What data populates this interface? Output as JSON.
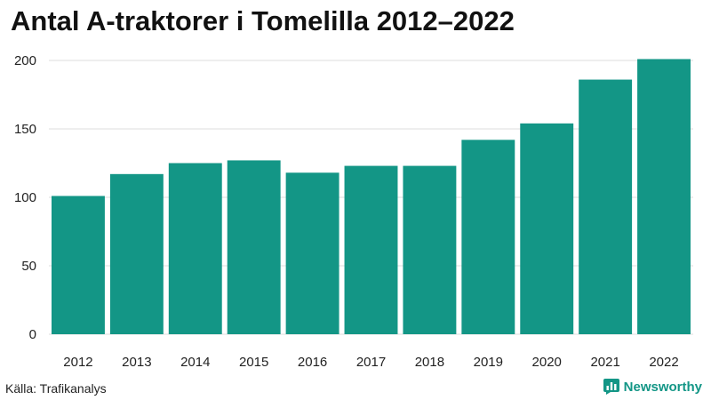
{
  "header": {
    "title": "Antal A-traktorer i Tomelilla 2012–2022"
  },
  "footer": {
    "source": "Källa: Trafikanalys",
    "brand": "Newsworthy",
    "brand_icon": "newsworthy-chart-logo-icon"
  },
  "colors": {
    "bar": "#139686",
    "grid": "#dddddd",
    "text": "#222222"
  },
  "chart_data": {
    "type": "bar",
    "title": "Antal A-traktorer i Tomelilla 2012–2022",
    "xlabel": "",
    "ylabel": "",
    "categories": [
      "2012",
      "2013",
      "2014",
      "2015",
      "2016",
      "2017",
      "2018",
      "2019",
      "2020",
      "2021",
      "2022"
    ],
    "values": [
      101,
      117,
      125,
      127,
      118,
      123,
      123,
      142,
      154,
      186,
      201
    ],
    "ylim": [
      0,
      200
    ],
    "yticks": [
      0,
      50,
      100,
      150,
      200
    ],
    "grid": true,
    "legend": "none"
  }
}
